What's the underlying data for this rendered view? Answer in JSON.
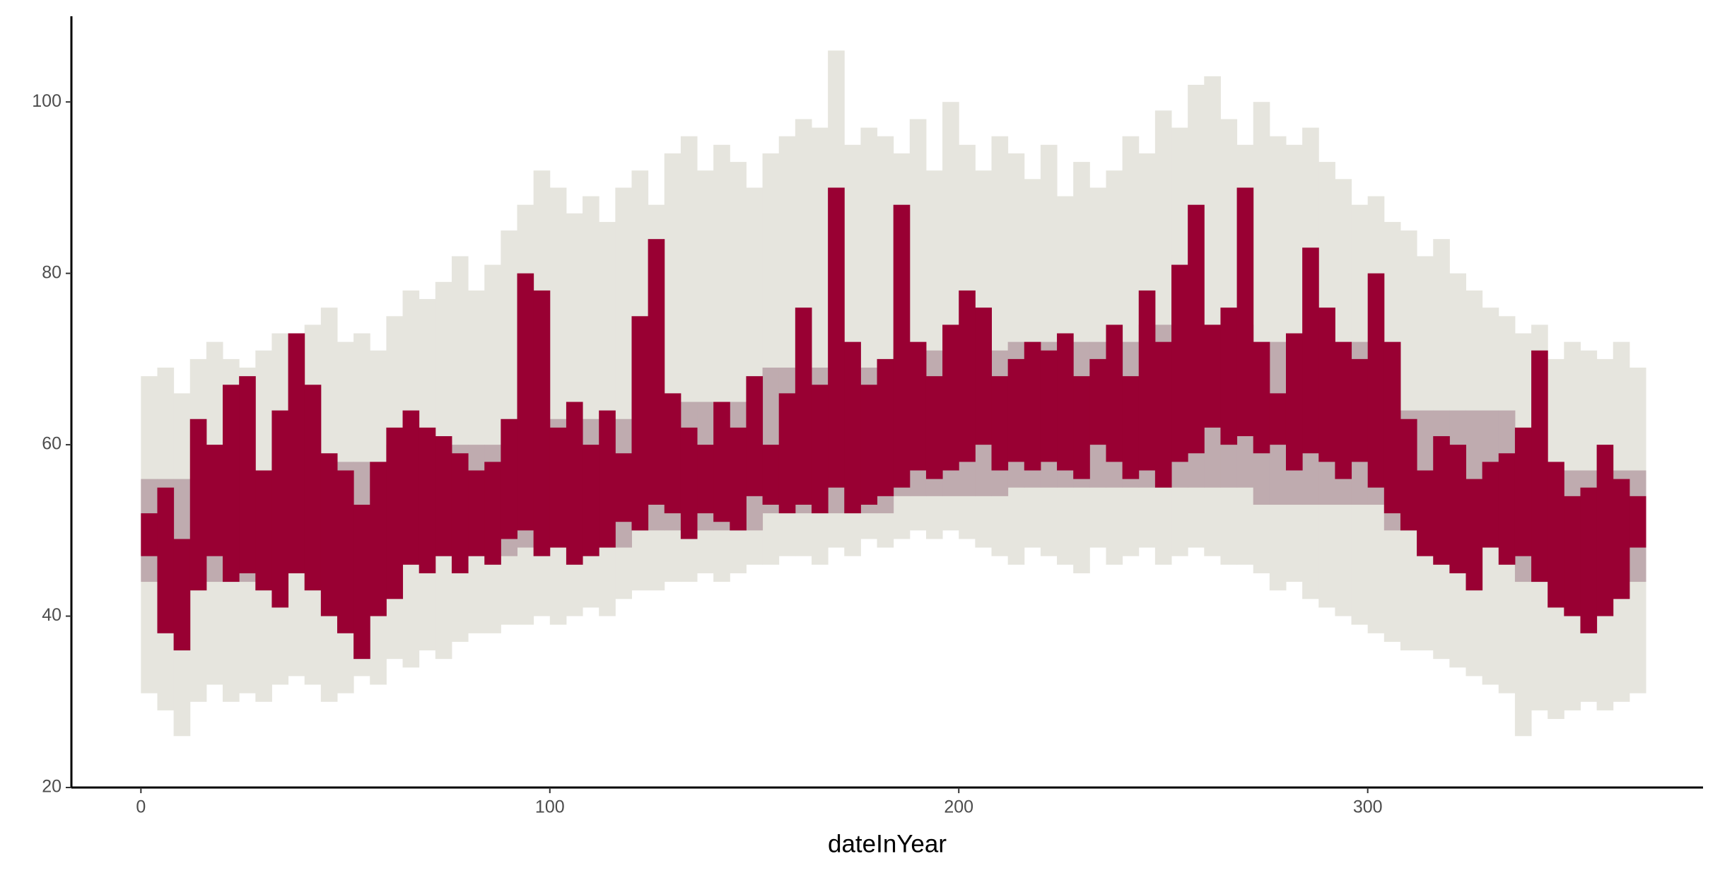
{
  "chart_data": {
    "type": "range",
    "x_label": "dateInYear",
    "xlim": [
      -17,
      382
    ],
    "ylim": [
      20,
      110
    ],
    "xticks": [
      0,
      100,
      200,
      300
    ],
    "yticks": [
      20,
      40,
      60,
      80,
      100
    ],
    "bar_width": 4,
    "x": [
      0,
      4,
      8,
      12,
      16,
      20,
      24,
      28,
      32,
      36,
      40,
      44,
      48,
      52,
      56,
      60,
      64,
      68,
      72,
      76,
      80,
      84,
      88,
      92,
      96,
      100,
      104,
      108,
      112,
      116,
      120,
      124,
      128,
      132,
      136,
      140,
      144,
      148,
      152,
      156,
      160,
      164,
      168,
      172,
      176,
      180,
      184,
      188,
      192,
      196,
      200,
      204,
      208,
      212,
      216,
      220,
      224,
      228,
      232,
      236,
      240,
      244,
      248,
      252,
      256,
      260,
      264,
      268,
      272,
      276,
      280,
      284,
      288,
      292,
      296,
      300,
      304,
      308,
      312,
      316,
      320,
      324,
      328,
      332,
      336,
      340,
      344,
      348,
      352,
      356,
      360,
      364
    ],
    "series": [
      {
        "color": "#e6e5de",
        "low": [
          31,
          29,
          26,
          30,
          32,
          30,
          31,
          30,
          32,
          33,
          32,
          30,
          31,
          33,
          32,
          35,
          34,
          36,
          35,
          37,
          38,
          38,
          39,
          39,
          40,
          39,
          40,
          41,
          40,
          42,
          43,
          43,
          44,
          44,
          45,
          44,
          45,
          46,
          46,
          47,
          47,
          46,
          48,
          47,
          49,
          48,
          49,
          50,
          49,
          50,
          49,
          48,
          47,
          46,
          48,
          47,
          46,
          45,
          48,
          46,
          47,
          48,
          46,
          47,
          48,
          47,
          46,
          46,
          45,
          43,
          44,
          42,
          41,
          40,
          39,
          38,
          37,
          36,
          36,
          35,
          34,
          33,
          32,
          31,
          26,
          29,
          28,
          29,
          30,
          29,
          30,
          31
        ],
        "high": [
          68,
          69,
          66,
          70,
          72,
          70,
          69,
          71,
          73,
          72,
          74,
          76,
          72,
          73,
          71,
          75,
          78,
          77,
          79,
          82,
          78,
          81,
          85,
          88,
          92,
          90,
          87,
          89,
          86,
          90,
          92,
          88,
          94,
          96,
          92,
          95,
          93,
          90,
          94,
          96,
          98,
          97,
          106,
          95,
          97,
          96,
          94,
          98,
          92,
          100,
          95,
          92,
          96,
          94,
          91,
          95,
          89,
          93,
          90,
          92,
          96,
          94,
          99,
          97,
          102,
          103,
          98,
          95,
          100,
          96,
          95,
          97,
          93,
          91,
          88,
          89,
          86,
          85,
          82,
          84,
          80,
          78,
          76,
          75,
          73,
          74,
          70,
          72,
          71,
          70,
          72,
          69
        ]
      },
      {
        "color": "#bfabaf",
        "low": [
          44,
          44,
          44,
          44,
          44,
          44,
          44,
          44,
          45,
          45,
          45,
          45,
          45,
          45,
          45,
          47,
          47,
          47,
          47,
          47,
          47,
          47,
          47,
          48,
          48,
          48,
          48,
          48,
          48,
          48,
          50,
          50,
          50,
          50,
          50,
          50,
          50,
          50,
          52,
          52,
          52,
          52,
          52,
          52,
          52,
          52,
          54,
          54,
          54,
          54,
          54,
          54,
          54,
          55,
          55,
          55,
          55,
          55,
          55,
          55,
          55,
          55,
          55,
          55,
          55,
          55,
          55,
          55,
          53,
          53,
          53,
          53,
          53,
          53,
          53,
          53,
          50,
          50,
          50,
          50,
          50,
          50,
          50,
          50,
          44,
          44,
          44,
          44,
          44,
          44,
          44,
          44
        ],
        "high": [
          56,
          56,
          56,
          56,
          56,
          56,
          56,
          56,
          58,
          58,
          58,
          58,
          58,
          58,
          58,
          60,
          60,
          60,
          60,
          60,
          60,
          60,
          60,
          63,
          63,
          63,
          63,
          63,
          63,
          63,
          65,
          65,
          65,
          65,
          65,
          65,
          65,
          65,
          69,
          69,
          69,
          69,
          69,
          69,
          69,
          69,
          71,
          71,
          71,
          71,
          71,
          71,
          71,
          72,
          72,
          72,
          72,
          72,
          72,
          72,
          72,
          74,
          74,
          74,
          74,
          74,
          74,
          74,
          72,
          72,
          72,
          72,
          72,
          72,
          72,
          72,
          64,
          64,
          64,
          64,
          64,
          64,
          64,
          64,
          57,
          57,
          57,
          57,
          57,
          57,
          57,
          57
        ]
      },
      {
        "color": "#990033",
        "low": [
          47,
          38,
          36,
          43,
          47,
          44,
          45,
          43,
          41,
          45,
          43,
          40,
          38,
          35,
          40,
          42,
          46,
          45,
          47,
          45,
          47,
          46,
          49,
          50,
          47,
          48,
          46,
          47,
          48,
          51,
          50,
          53,
          52,
          49,
          52,
          51,
          50,
          54,
          53,
          52,
          53,
          52,
          55,
          52,
          53,
          54,
          55,
          57,
          56,
          57,
          58,
          60,
          57,
          58,
          57,
          58,
          57,
          56,
          60,
          58,
          56,
          57,
          55,
          58,
          59,
          62,
          60,
          61,
          59,
          60,
          57,
          59,
          58,
          56,
          58,
          55,
          52,
          50,
          47,
          46,
          45,
          43,
          48,
          46,
          47,
          44,
          41,
          40,
          38,
          40,
          42,
          48
        ],
        "high": [
          52,
          55,
          49,
          63,
          60,
          67,
          68,
          57,
          64,
          73,
          67,
          59,
          57,
          53,
          58,
          62,
          64,
          62,
          61,
          59,
          57,
          58,
          63,
          80,
          78,
          62,
          65,
          60,
          64,
          59,
          75,
          84,
          66,
          62,
          60,
          65,
          62,
          68,
          60,
          66,
          76,
          67,
          90,
          72,
          67,
          70,
          88,
          72,
          68,
          74,
          78,
          76,
          68,
          70,
          72,
          71,
          73,
          68,
          70,
          74,
          68,
          78,
          72,
          81,
          88,
          74,
          76,
          90,
          72,
          66,
          73,
          83,
          76,
          72,
          70,
          80,
          72,
          63,
          57,
          61,
          60,
          56,
          58,
          59,
          62,
          71,
          58,
          54,
          55,
          60,
          56,
          54
        ]
      }
    ]
  }
}
